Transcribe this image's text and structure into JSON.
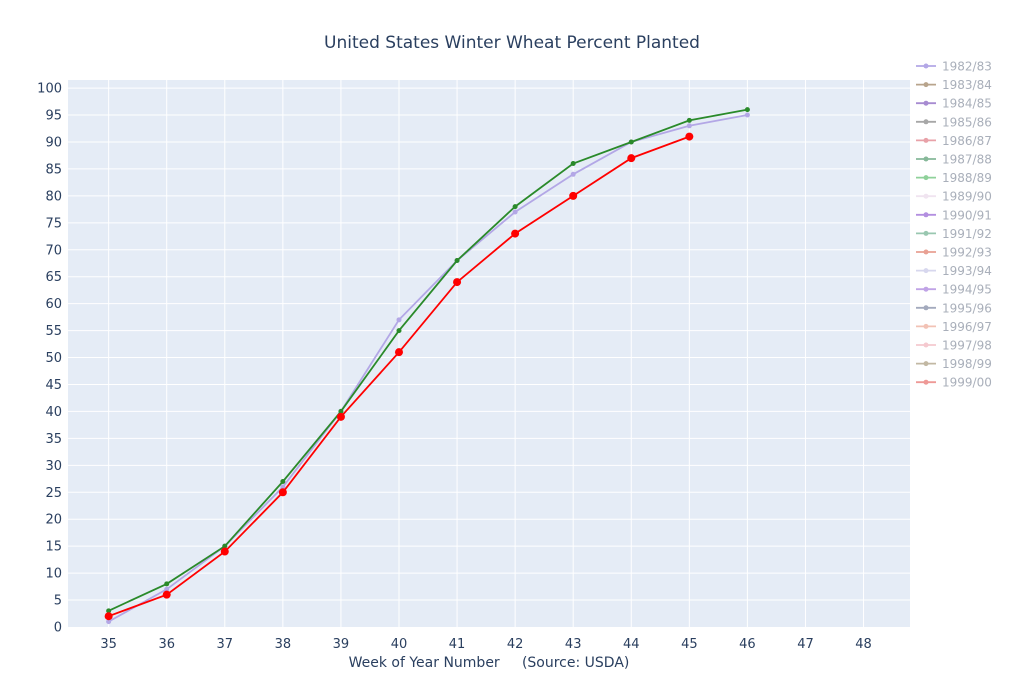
{
  "chart_data": {
    "type": "line",
    "title": "United States Winter Wheat Percent Planted",
    "xlabel": "Week of Year Number     (Source: USDA)",
    "ylabel": "",
    "xlim": [
      34.3,
      48.8
    ],
    "ylim": [
      0,
      101.5
    ],
    "x_ticks": [
      35,
      36,
      37,
      38,
      39,
      40,
      41,
      42,
      43,
      44,
      45,
      46,
      47,
      48
    ],
    "y_ticks": [
      0,
      5,
      10,
      15,
      20,
      25,
      30,
      35,
      40,
      45,
      50,
      55,
      60,
      65,
      70,
      75,
      80,
      85,
      90,
      95,
      100
    ],
    "grid": true,
    "legend_placement": "right",
    "plot_bg": "#e5ecf6",
    "series": [
      {
        "name": "1982/83",
        "color": "#b3a7e6",
        "marker": 4,
        "opacity": 1,
        "x": [
          35,
          36,
          37,
          38,
          39,
          40,
          41,
          42,
          43,
          44,
          45,
          46
        ],
        "values": [
          1,
          7,
          15,
          26,
          40,
          57,
          68,
          77,
          84,
          90,
          93,
          95
        ]
      },
      {
        "name": "1983/84",
        "color": "#b8a48c",
        "marker": 4,
        "opacity": 1,
        "x": [],
        "values": []
      },
      {
        "name": "1984/85",
        "color": "#a78bd1",
        "marker": 4,
        "opacity": 1,
        "x": [],
        "values": []
      },
      {
        "name": "1985/86",
        "color": "#a7a7a7",
        "marker": 4,
        "opacity": 1,
        "x": [],
        "values": []
      },
      {
        "name": "1986/87",
        "color": "#e8a1a8",
        "marker": 4,
        "opacity": 1,
        "x": [],
        "values": []
      },
      {
        "name": "1987/88",
        "color": "#86b899",
        "marker": 4,
        "opacity": 1,
        "x": [],
        "values": []
      },
      {
        "name": "1988/89",
        "color": "#8fd19a",
        "marker": 4,
        "opacity": 1,
        "x": [],
        "values": []
      },
      {
        "name": "1989/90",
        "color": "#f0e4f0",
        "marker": 4,
        "opacity": 1,
        "x": [],
        "values": []
      },
      {
        "name": "1990/91",
        "color": "#b38fe0",
        "marker": 4,
        "opacity": 1,
        "x": [],
        "values": []
      },
      {
        "name": "1991/92",
        "color": "#99c7b0",
        "marker": 4,
        "opacity": 1,
        "x": [],
        "values": []
      },
      {
        "name": "1992/93",
        "color": "#e8a093",
        "marker": 4,
        "opacity": 1,
        "x": [],
        "values": []
      },
      {
        "name": "1993/94",
        "color": "#d7d7ee",
        "marker": 4,
        "opacity": 1,
        "x": [],
        "values": []
      },
      {
        "name": "1994/95",
        "color": "#c0a3e6",
        "marker": 4,
        "opacity": 1,
        "x": [],
        "values": []
      },
      {
        "name": "1995/96",
        "color": "#a3aabd",
        "marker": 4,
        "opacity": 1,
        "x": [],
        "values": []
      },
      {
        "name": "1996/97",
        "color": "#f2c2b5",
        "marker": 4,
        "opacity": 1,
        "x": [],
        "values": []
      },
      {
        "name": "1997/98",
        "color": "#f5c9cf",
        "marker": 4,
        "opacity": 1,
        "x": [],
        "values": []
      },
      {
        "name": "1998/99",
        "color": "#c2b8a3",
        "marker": 4,
        "opacity": 1,
        "x": [],
        "values": []
      },
      {
        "name": "1999/00",
        "color": "#ee9996",
        "marker": 4,
        "opacity": 1,
        "x": [],
        "values": []
      },
      {
        "name": "",
        "color": "#2a8a2a",
        "marker": 4,
        "opacity": 1,
        "x": [
          35,
          36,
          37,
          38,
          39,
          40,
          41,
          42,
          43,
          44,
          45,
          46
        ],
        "values": [
          3,
          8,
          15,
          27,
          40,
          55,
          68,
          78,
          86,
          90,
          94,
          96
        ]
      },
      {
        "name": "",
        "color": "#ff0000",
        "marker": 7,
        "opacity": 1,
        "x": [
          35,
          36,
          37,
          38,
          39,
          40,
          41,
          42,
          43,
          44,
          45
        ],
        "values": [
          2,
          6,
          14,
          25,
          39,
          51,
          64,
          73,
          80,
          87,
          91
        ]
      }
    ]
  }
}
